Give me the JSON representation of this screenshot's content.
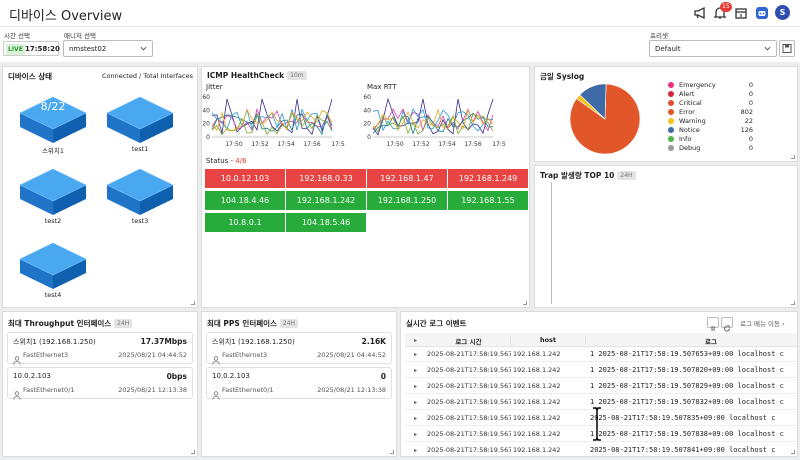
{
  "header": {
    "title": "디바이스 Overview",
    "notification_count": "15",
    "avatar_letter": "S"
  },
  "controls": {
    "time_label": "시간 선택",
    "live_label": "LIVE",
    "time_value": "17:58:20",
    "manager_label": "매니저 선택",
    "manager_value": "nmstest02",
    "preset_label": "프리셋",
    "preset_value": "Default"
  },
  "device_status": {
    "title": "디바이스 상태",
    "subtitle": "Connected / Total Interfaces",
    "devices": [
      {
        "name": "스위치1",
        "ports": "8/22"
      },
      {
        "name": "test1",
        "ports": ""
      },
      {
        "name": "test2",
        "ports": ""
      },
      {
        "name": "test3",
        "ports": ""
      },
      {
        "name": "test4",
        "ports": ""
      }
    ]
  },
  "icmp": {
    "title": "ICMP HealthCheck",
    "interval": "10m",
    "jitter_label": "Jitter",
    "rtt_label": "Max RTT",
    "jitter_ticks_y": [
      "60",
      "40",
      "20",
      "0"
    ],
    "rtt_ticks_y": [
      "60",
      "40",
      "20",
      "0"
    ],
    "jitter_ticks_x": [
      "17:50",
      "17:52",
      "17:54",
      "17:56",
      "17:5"
    ],
    "rtt_ticks_x": [
      "17:50",
      "17:52",
      "17:54",
      "17:56",
      "17:5"
    ],
    "status_label": "Status - ",
    "status_count": "4/6",
    "status_cells": [
      {
        "ip": "10.0.12.103",
        "state": "down"
      },
      {
        "ip": "192.168.0.33",
        "state": "down"
      },
      {
        "ip": "192.168.1.47",
        "state": "down"
      },
      {
        "ip": "192.168.1.249",
        "state": "down"
      },
      {
        "ip": "104.18.4.46",
        "state": "up"
      },
      {
        "ip": "192.168.1.242",
        "state": "up"
      },
      {
        "ip": "192.168.1.250",
        "state": "up"
      },
      {
        "ip": "192.168.1.55",
        "state": "up"
      },
      {
        "ip": "10.8.0.1",
        "state": "up"
      },
      {
        "ip": "104.18.5.46",
        "state": "up"
      }
    ]
  },
  "syslog": {
    "title": "금일 Syslog",
    "levels": [
      {
        "name": "Emergency",
        "count": "0",
        "color": "#e8317a"
      },
      {
        "name": "Alert",
        "count": "0",
        "color": "#d6243e"
      },
      {
        "name": "Critical",
        "count": "0",
        "color": "#e34f33"
      },
      {
        "name": "Error",
        "count": "802",
        "color": "#e2572a"
      },
      {
        "name": "Warning",
        "count": "22",
        "color": "#f2c21b"
      },
      {
        "name": "Notice",
        "count": "126",
        "color": "#3e6aa8"
      },
      {
        "name": "Info",
        "count": "0",
        "color": "#4fb649"
      },
      {
        "name": "Debug",
        "count": "0",
        "color": "#9a9a9a"
      }
    ]
  },
  "trap": {
    "title": "Trap 발생량 TOP 10",
    "range": "24H"
  },
  "throughput": {
    "title": "최대 Throughput 인터페이스",
    "range": "24H",
    "items": [
      {
        "device": "스위치1 (192.168.1.250)",
        "value": "17.37Mbps",
        "iface": "FastEthernet3",
        "time": "2025/08/21 04:44:52"
      },
      {
        "device": "10.0.2.103",
        "value": "0bps",
        "iface": "FastEthernet0/1",
        "time": "2025/08/21 12:13:38"
      }
    ]
  },
  "pps": {
    "title": "최대 PPS 인터페이스",
    "range": "24H",
    "items": [
      {
        "device": "스위치1 (192.168.1.250)",
        "value": "2.16K",
        "iface": "FastEthernet3",
        "time": "2025/08/21 04:44:52"
      },
      {
        "device": "10.0.2.103",
        "value": "0",
        "iface": "FastEthernet0/1",
        "time": "2025/08/21 12:13:38"
      }
    ]
  },
  "logs": {
    "title": "실시간 로그 이벤트",
    "menu_link": "로그 메뉴 이동",
    "col_time": "로그 시간",
    "col_host": "host",
    "col_log": "로그",
    "rows": [
      {
        "time": "2025-08-21T17:58:19.567",
        "host": "192.168.1.242",
        "log": "1 2025-08-21T17:58:19.507653+09:00 localhost c"
      },
      {
        "time": "2025-08-21T17:58:19.567",
        "host": "192.168.1.242",
        "log": "1 2025-08-21T17:58:19.507820+09:00 localhost c"
      },
      {
        "time": "2025-08-21T17:58:19.567",
        "host": "192.168.1.242",
        "log": "1 2025-08-21T17:58:19.507829+09:00 localhost c"
      },
      {
        "time": "2025-08-21T17:58:19.567",
        "host": "192.168.1.242",
        "log": "1 2025-08-21T17:58:19.507832+09:00 localhost c"
      },
      {
        "time": "2025-08-21T17:58:19.567",
        "host": "192.168.1.242",
        "log": "2025-08-21T17:58:19.507835+09:00 localhost c"
      },
      {
        "time": "2025-08-21T17:58:19.567",
        "host": "192.168.1.242",
        "log": "1 2025-08-21T17:58:19.507838+09:00 localhost c"
      },
      {
        "time": "2025-08-21T17:58:19.567",
        "host": "192.168.1.242",
        "log": "2025-08-21T17:58:19.507841+09:00 localhost c"
      }
    ]
  }
}
